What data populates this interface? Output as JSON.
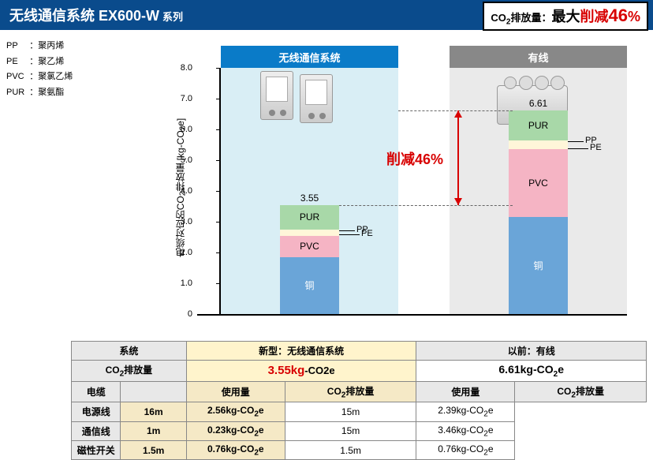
{
  "title": {
    "main": "无线通信系统 EX600-W",
    "sub": "系列"
  },
  "badge": {
    "prefix": "CO",
    "sub": "2",
    "mid": "排放量：",
    "big1": "最大",
    "big2": "削减",
    "pct": "46",
    "pct_suffix": "%"
  },
  "legend": [
    {
      "code": "PP",
      "name": "：聚丙烯"
    },
    {
      "code": "PE",
      "name": "：聚乙烯"
    },
    {
      "code": "PVC",
      "name": "：聚氯乙烯"
    },
    {
      "code": "PUR",
      "name": "：聚氨酯"
    }
  ],
  "chart": {
    "hdr1": "无线通信系统",
    "hdr2": "有线",
    "ylabel_a": "电缆对应的CO",
    "ylabel_b": "排放量 [kg-CO",
    "ylabel_c": "e]",
    "ymax": 8.0,
    "yticks": [
      "0",
      "1.0",
      "2.0",
      "3.0",
      "4.0",
      "5.0",
      "6.0",
      "7.0",
      "8.0"
    ],
    "reduce": "削减46%",
    "bar1": {
      "total": "3.55",
      "segments": [
        {
          "label": "铜",
          "v0": 0,
          "v1": 1.85,
          "color": "#6aa5d8",
          "textcolor": "#fff"
        },
        {
          "label": "PVC",
          "v0": 1.85,
          "v1": 2.55,
          "color": "#f5b4c4",
          "textcolor": "#000"
        },
        {
          "label": "",
          "v0": 2.55,
          "v1": 2.75,
          "color": "#fff6d9",
          "textcolor": "#000"
        },
        {
          "label": "PUR",
          "v0": 2.75,
          "v1": 3.55,
          "color": "#a8d8a8",
          "textcolor": "#000"
        }
      ],
      "callouts": [
        {
          "label": "PP",
          "y": 2.72
        },
        {
          "label": "PE",
          "y": 2.58
        }
      ]
    },
    "bar2": {
      "total": "6.61",
      "segments": [
        {
          "label": "铜",
          "v0": 0,
          "v1": 3.15,
          "color": "#6aa5d8",
          "textcolor": "#fff"
        },
        {
          "label": "PVC",
          "v0": 3.15,
          "v1": 5.35,
          "color": "#f5b4c4",
          "textcolor": "#000"
        },
        {
          "label": "",
          "v0": 5.35,
          "v1": 5.65,
          "color": "#fff6d9",
          "textcolor": "#000"
        },
        {
          "label": "PUR",
          "v0": 5.65,
          "v1": 6.61,
          "color": "#a8d8a8",
          "textcolor": "#000"
        }
      ],
      "callouts": [
        {
          "label": "PP",
          "y": 5.62
        },
        {
          "label": "PE",
          "y": 5.38
        }
      ]
    }
  },
  "table": {
    "r1_label": "系统",
    "r1_new": "新型：无线通信系统",
    "r1_old": "以前：有线",
    "r2_label": "CO2排放量",
    "r2_new_val": "3.55kg",
    "r2_new_unit": "-CO2e",
    "r2_old": "6.61kg-CO2e",
    "sub_use": "使用量",
    "sub_co2": "CO2排放量",
    "cable_label": "电缆",
    "rows": [
      {
        "name": "电源线",
        "nu": "16m",
        "nc": "2.56kg-CO2e",
        "ou": "15m",
        "oc": "2.39kg-CO2e"
      },
      {
        "name": "通信线",
        "nu": "1m",
        "nc": "0.23kg-CO2e",
        "ou": "15m",
        "oc": "3.46kg-CO2e"
      },
      {
        "name": "磁性开关",
        "nu": "1.5m",
        "nc": "0.76kg-CO2e",
        "ou": "1.5m",
        "oc": "0.76kg-CO2e"
      }
    ]
  }
}
